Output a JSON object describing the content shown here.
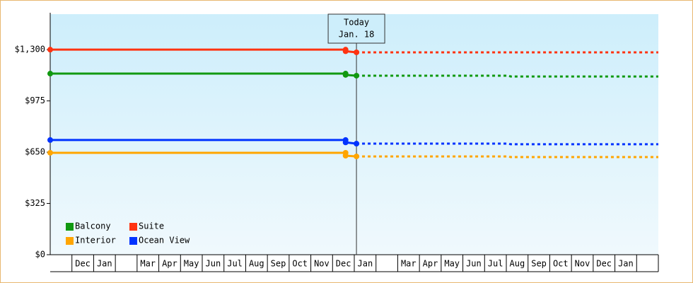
{
  "chart_data": {
    "type": "line",
    "ylim": [
      0,
      1525
    ],
    "yticks": [
      {
        "value": 0,
        "label": "$0"
      },
      {
        "value": 325,
        "label": "$325"
      },
      {
        "value": 650,
        "label": "$650"
      },
      {
        "value": 975,
        "label": "$975"
      },
      {
        "value": 1300,
        "label": "$1,300"
      }
    ],
    "xlim": [
      0,
      28
    ],
    "categories": [
      null,
      "Dec",
      "Jan",
      null,
      "Mar",
      "Apr",
      "May",
      "Jun",
      "Jul",
      "Aug",
      "Sep",
      "Oct",
      "Nov",
      "Dec",
      "Jan",
      null,
      "Mar",
      "Apr",
      "May",
      "Jun",
      "Jul",
      "Aug",
      "Sep",
      "Oct",
      "Nov",
      "Dec",
      "Jan",
      null
    ],
    "today": {
      "x": 14.1,
      "label": "Today",
      "date": "Jan. 18"
    },
    "series": [
      {
        "name": "Balcony",
        "color": "#119911",
        "x": [
          0,
          13.6,
          13.6,
          14.1
        ],
        "values": [
          1148,
          1148,
          1140,
          1135
        ],
        "forecast_x": [
          14.1,
          21.1,
          21.2,
          28
        ],
        "forecast_values": [
          1135,
          1135,
          1130,
          1130
        ]
      },
      {
        "name": "Suite",
        "color": "#ff3311",
        "x": [
          0,
          13.6,
          13.6,
          14.1
        ],
        "values": [
          1300,
          1300,
          1290,
          1283
        ],
        "forecast_x": [
          14.1,
          21.1,
          21.2,
          28
        ],
        "forecast_values": [
          1283,
          1283,
          1283,
          1283
        ]
      },
      {
        "name": "Interior",
        "color": "#ffa500",
        "x": [
          0,
          13.6,
          13.6,
          14.1
        ],
        "values": [
          646,
          646,
          628,
          623
        ],
        "forecast_x": [
          14.1,
          21.1,
          21.2,
          28
        ],
        "forecast_values": [
          623,
          623,
          619,
          619
        ]
      },
      {
        "name": "Ocean View",
        "color": "#0033ff",
        "x": [
          0,
          13.6,
          13.6,
          14.1
        ],
        "values": [
          727,
          727,
          712,
          704
        ],
        "forecast_x": [
          14.1,
          21.1,
          21.2,
          28
        ],
        "forecast_values": [
          704,
          704,
          700,
          700
        ]
      }
    ]
  }
}
